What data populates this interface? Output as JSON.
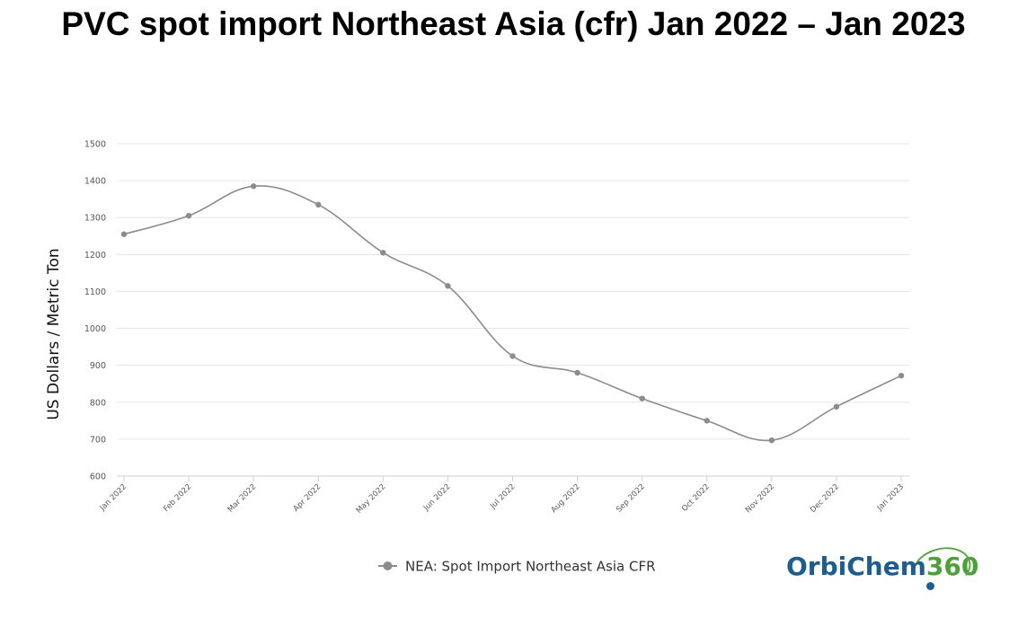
{
  "chart_data": {
    "type": "line",
    "title": "PVC spot import Northeast Asia (cfr) Jan 2022 – Jan 2023",
    "ylabel": "US Dollars / Metric Ton",
    "xlabel": "",
    "ylim": [
      600,
      1500
    ],
    "yticks": [
      "600",
      "700",
      "800",
      "900",
      "1000",
      "1100",
      "1200",
      "1300",
      "1400",
      "1500"
    ],
    "categories": [
      "Jan 2022",
      "Feb 2022",
      "Mar 2022",
      "Apr 2022",
      "May 2022",
      "Jun 2022",
      "Jul 2022",
      "Aug 2022",
      "Sep 2022",
      "Oct 2022",
      "Nov 2022",
      "Dec 2022",
      "Jan 2023"
    ],
    "series": [
      {
        "name": "NEA: Spot Import Northeast Asia CFR",
        "values": [
          1255,
          1305,
          1385,
          1335,
          1205,
          1115,
          925,
          880,
          810,
          750,
          697,
          788,
          872
        ]
      }
    ],
    "grid": true,
    "legend": "bottom-center",
    "line_color": "#8c8c8c"
  },
  "logo": {
    "prefix": "OrbiChem",
    "suffix": "360",
    "primary_color": "#1f5d8c",
    "accent_color": "#4f9f3a"
  }
}
